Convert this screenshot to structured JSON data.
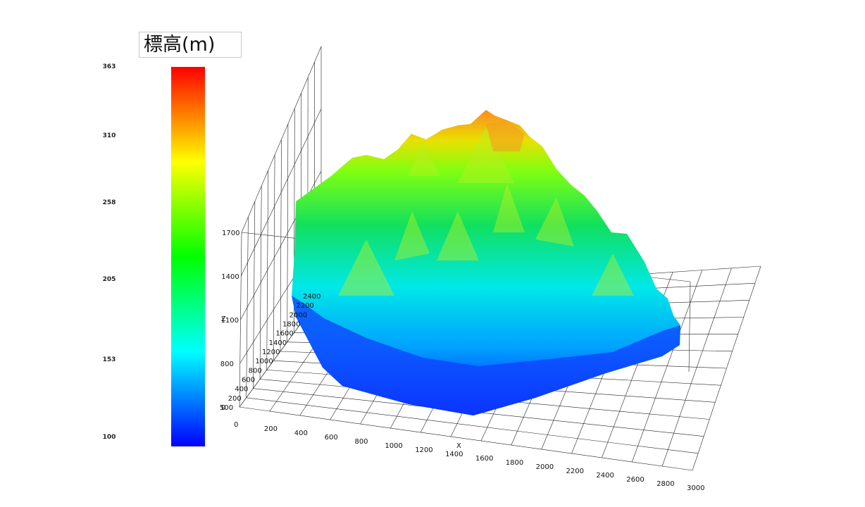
{
  "legend": {
    "title": "標高(m)",
    "colors": [
      "#0000ff",
      "#00ffff",
      "#00ff00",
      "#ffff00",
      "#ff0000"
    ],
    "ticks": [
      363,
      310,
      258,
      205,
      153,
      100
    ]
  },
  "chart_data": {
    "type": "surface3d",
    "title": "",
    "xlabel": "X",
    "ylabel": "",
    "zlabel": "Z",
    "xlim": [
      0,
      3000
    ],
    "x_ticks": [
      0,
      200,
      400,
      600,
      800,
      1000,
      1200,
      1400,
      1600,
      1800,
      2000,
      2200,
      2400,
      2600,
      2800,
      3000
    ],
    "y_ticks": [
      0,
      200,
      400,
      600,
      800,
      1000,
      1200,
      1400,
      1600,
      1800,
      2000,
      2200,
      2400
    ],
    "z_ticks": [
      500,
      800,
      1100,
      1400,
      1700
    ],
    "value_range": [
      100,
      363
    ],
    "grid": true
  }
}
